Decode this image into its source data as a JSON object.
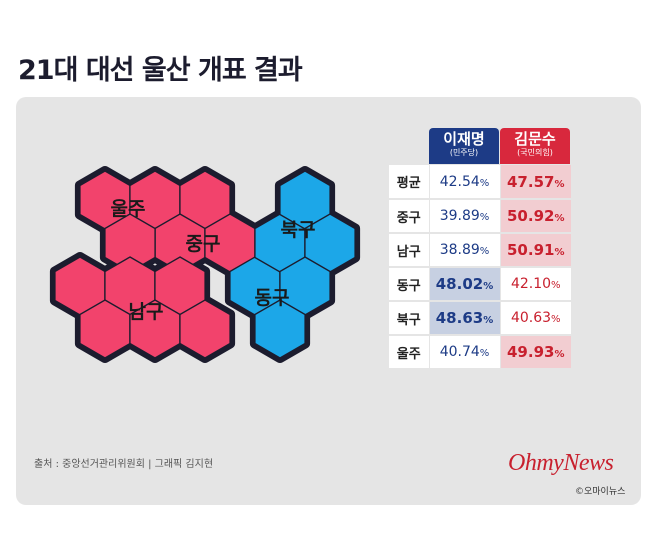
{
  "title": "21대 대선 울산 개표 결과",
  "colors": {
    "kim": "#f2436c",
    "lee": "#1ca7e8",
    "kim_header": "#d8283d",
    "lee_header": "#1d3b86",
    "hex_border": "#1c1c2e",
    "panel": "#e5e5e5"
  },
  "map": {
    "regions": [
      {
        "name": "울주",
        "winner": "kim"
      },
      {
        "name": "중구",
        "winner": "kim"
      },
      {
        "name": "남구",
        "winner": "kim"
      },
      {
        "name": "북구",
        "winner": "lee"
      },
      {
        "name": "동구",
        "winner": "lee"
      }
    ]
  },
  "table": {
    "candidates": [
      {
        "name": "이재명",
        "party": "(민주당)"
      },
      {
        "name": "김문수",
        "party": "(국민의힘)"
      }
    ],
    "percent_sign": "%",
    "rows": [
      {
        "region": "평균",
        "lee": "42.54",
        "kim": "47.57",
        "winner": "kim"
      },
      {
        "region": "중구",
        "lee": "39.89",
        "kim": "50.92",
        "winner": "kim"
      },
      {
        "region": "남구",
        "lee": "38.89",
        "kim": "50.91",
        "winner": "kim"
      },
      {
        "region": "동구",
        "lee": "48.02",
        "kim": "42.10",
        "winner": "lee"
      },
      {
        "region": "북구",
        "lee": "48.63",
        "kim": "40.63",
        "winner": "lee"
      },
      {
        "region": "울주",
        "lee": "40.74",
        "kim": "49.93",
        "winner": "kim"
      }
    ]
  },
  "footer": {
    "source": "출처 : 중앙선거관리위원회 | 그래픽 김지현",
    "logo": "OhmyNews",
    "copyright": "©오마이뉴스"
  }
}
